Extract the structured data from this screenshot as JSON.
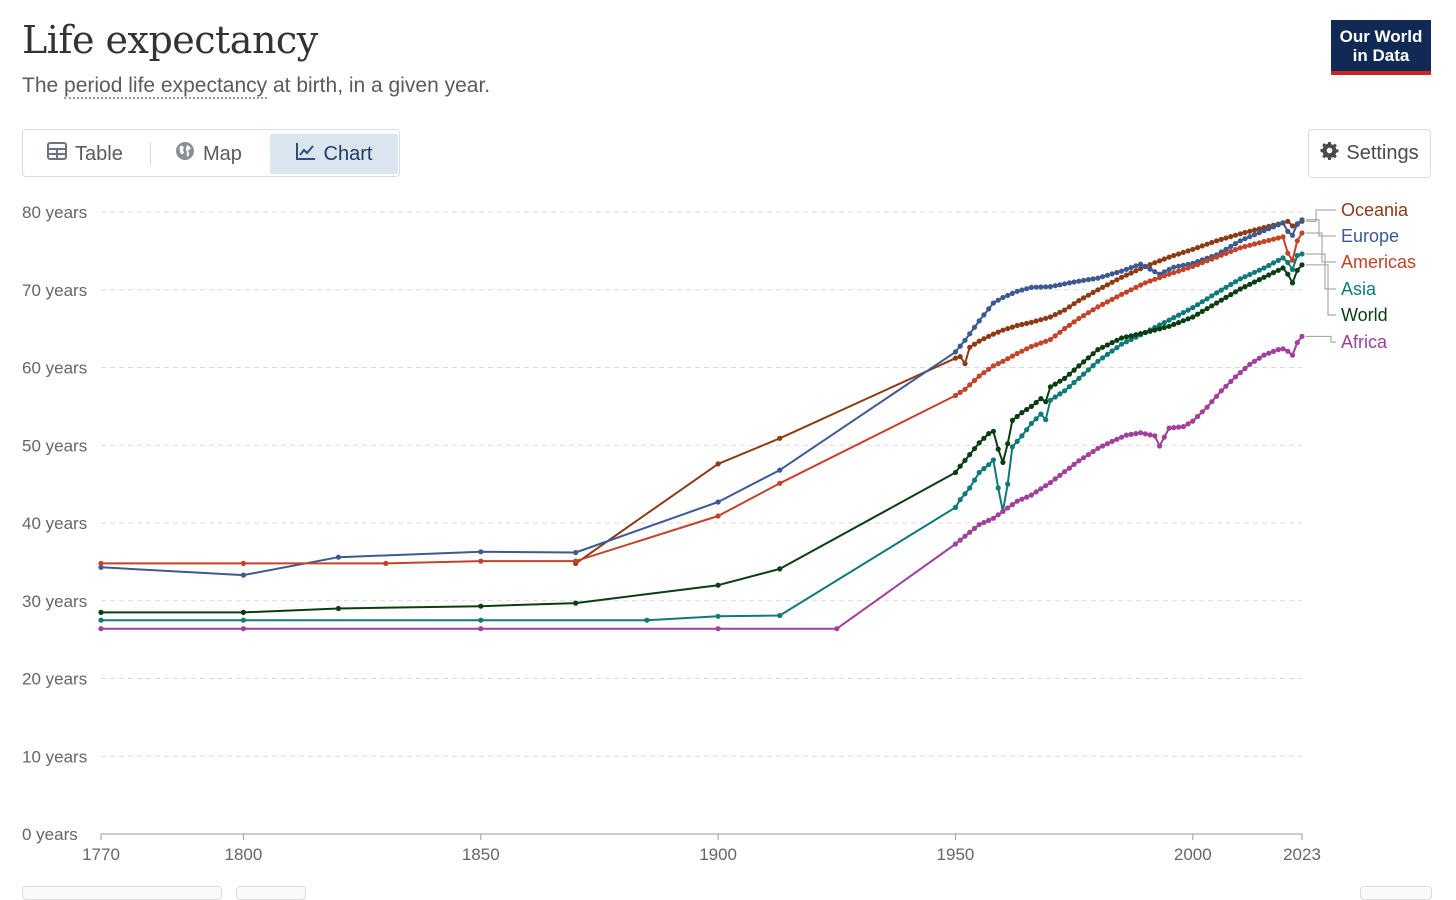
{
  "header": {
    "title": "Life expectancy",
    "subtitle_link": "period life expectancy",
    "subtitle_before": "The ",
    "subtitle_after": " at birth, in a given year."
  },
  "logo": {
    "line1": "Our World",
    "line2": "in Data"
  },
  "tabs": [
    {
      "label": "Table",
      "icon": "table-icon",
      "active": false
    },
    {
      "label": "Map",
      "icon": "globe-icon",
      "active": false
    },
    {
      "label": "Chart",
      "icon": "line-chart-icon",
      "active": true
    }
  ],
  "settings": {
    "label": "Settings",
    "icon": "gear-icon"
  },
  "chart_data": {
    "type": "line",
    "title": "Life expectancy",
    "subtitle": "The period life expectancy at birth, in a given year.",
    "xlabel": "",
    "ylabel": "",
    "xlim": [
      1770,
      2023
    ],
    "ylim": [
      0,
      80
    ],
    "x_ticks": [
      1770,
      1800,
      1850,
      1900,
      1950,
      2000,
      2023
    ],
    "y_ticks": [
      {
        "value": 0,
        "label": "0 years"
      },
      {
        "value": 10,
        "label": "10 years"
      },
      {
        "value": 20,
        "label": "20 years"
      },
      {
        "value": 30,
        "label": "30 years"
      },
      {
        "value": 40,
        "label": "40 years"
      },
      {
        "value": 50,
        "label": "50 years"
      },
      {
        "value": 60,
        "label": "60 years"
      },
      {
        "value": 70,
        "label": "70 years"
      },
      {
        "value": 80,
        "label": "80 years"
      }
    ],
    "grid": "horizontal dashed",
    "legend_placement": "right (line-end labels)",
    "series": [
      {
        "name": "Oceania",
        "color": "#8c3b14",
        "points": [
          [
            1870,
            34.8
          ],
          [
            1900,
            47.6
          ],
          [
            1913,
            50.9
          ],
          [
            1950,
            61.2
          ],
          [
            1951,
            61.4
          ],
          [
            1952,
            60.5
          ],
          [
            1953,
            62.6
          ],
          [
            1955,
            63.4
          ],
          [
            1958,
            64.3
          ],
          [
            1960,
            64.8
          ],
          [
            1963,
            65.4
          ],
          [
            1966,
            65.8
          ],
          [
            1970,
            66.5
          ],
          [
            1973,
            67.4
          ],
          [
            1976,
            68.6
          ],
          [
            1980,
            70.0
          ],
          [
            1985,
            71.6
          ],
          [
            1990,
            73.0
          ],
          [
            1995,
            74.2
          ],
          [
            2000,
            75.2
          ],
          [
            2005,
            76.3
          ],
          [
            2010,
            77.2
          ],
          [
            2015,
            78.0
          ],
          [
            2019,
            78.6
          ],
          [
            2020,
            78.8
          ],
          [
            2021,
            78.2
          ],
          [
            2022,
            78.4
          ],
          [
            2023,
            78.8
          ]
        ]
      },
      {
        "name": "Europe",
        "color": "#3c5a91",
        "points": [
          [
            1770,
            34.3
          ],
          [
            1800,
            33.3
          ],
          [
            1820,
            35.6
          ],
          [
            1850,
            36.3
          ],
          [
            1870,
            36.2
          ],
          [
            1900,
            42.7
          ],
          [
            1913,
            46.8
          ],
          [
            1950,
            62.0
          ],
          [
            1952,
            63.5
          ],
          [
            1955,
            66.0
          ],
          [
            1958,
            68.3
          ],
          [
            1960,
            69.0
          ],
          [
            1963,
            69.8
          ],
          [
            1966,
            70.3
          ],
          [
            1970,
            70.4
          ],
          [
            1975,
            71.0
          ],
          [
            1980,
            71.5
          ],
          [
            1985,
            72.4
          ],
          [
            1989,
            73.3
          ],
          [
            1993,
            72.0
          ],
          [
            1996,
            72.9
          ],
          [
            2000,
            73.4
          ],
          [
            2005,
            74.5
          ],
          [
            2010,
            76.3
          ],
          [
            2015,
            77.6
          ],
          [
            2019,
            78.6
          ],
          [
            2020,
            77.5
          ],
          [
            2021,
            77.0
          ],
          [
            2022,
            78.5
          ],
          [
            2023,
            79.0
          ]
        ]
      },
      {
        "name": "Americas",
        "color": "#c1442b",
        "points": [
          [
            1770,
            34.8
          ],
          [
            1800,
            34.8
          ],
          [
            1830,
            34.8
          ],
          [
            1850,
            35.1
          ],
          [
            1870,
            35.1
          ],
          [
            1900,
            40.9
          ],
          [
            1913,
            45.1
          ],
          [
            1950,
            56.4
          ],
          [
            1952,
            57.2
          ],
          [
            1955,
            58.9
          ],
          [
            1958,
            60.2
          ],
          [
            1960,
            60.8
          ],
          [
            1963,
            61.8
          ],
          [
            1966,
            62.7
          ],
          [
            1970,
            63.6
          ],
          [
            1973,
            65.0
          ],
          [
            1976,
            66.3
          ],
          [
            1980,
            67.8
          ],
          [
            1985,
            69.4
          ],
          [
            1990,
            70.9
          ],
          [
            1995,
            72.0
          ],
          [
            2000,
            73.0
          ],
          [
            2005,
            74.2
          ],
          [
            2010,
            75.4
          ],
          [
            2015,
            76.2
          ],
          [
            2019,
            76.8
          ],
          [
            2020,
            74.7
          ],
          [
            2021,
            73.8
          ],
          [
            2022,
            76.3
          ],
          [
            2023,
            77.3
          ]
        ]
      },
      {
        "name": "Asia",
        "color": "#0f7a78",
        "points": [
          [
            1770,
            27.5
          ],
          [
            1800,
            27.5
          ],
          [
            1850,
            27.5
          ],
          [
            1885,
            27.5
          ],
          [
            1900,
            28.0
          ],
          [
            1913,
            28.1
          ],
          [
            1950,
            42.0
          ],
          [
            1951,
            43.0
          ],
          [
            1953,
            44.5
          ],
          [
            1955,
            46.5
          ],
          [
            1957,
            47.5
          ],
          [
            1958,
            48.1
          ],
          [
            1959,
            44.5
          ],
          [
            1960,
            41.5
          ],
          [
            1961,
            45.0
          ],
          [
            1962,
            49.8
          ],
          [
            1964,
            51.2
          ],
          [
            1966,
            52.8
          ],
          [
            1968,
            54.0
          ],
          [
            1969,
            53.3
          ],
          [
            1970,
            55.8
          ],
          [
            1973,
            57.0
          ],
          [
            1976,
            58.6
          ],
          [
            1980,
            60.8
          ],
          [
            1985,
            63.0
          ],
          [
            1990,
            64.5
          ],
          [
            1995,
            66.1
          ],
          [
            2000,
            67.7
          ],
          [
            2005,
            69.6
          ],
          [
            2010,
            71.4
          ],
          [
            2015,
            72.8
          ],
          [
            2019,
            74.1
          ],
          [
            2020,
            73.5
          ],
          [
            2021,
            72.6
          ],
          [
            2022,
            74.4
          ],
          [
            2023,
            74.6
          ]
        ]
      },
      {
        "name": "World",
        "color": "#0b3d12",
        "points": [
          [
            1770,
            28.5
          ],
          [
            1800,
            28.5
          ],
          [
            1820,
            29.0
          ],
          [
            1850,
            29.3
          ],
          [
            1870,
            29.7
          ],
          [
            1900,
            32.0
          ],
          [
            1913,
            34.1
          ],
          [
            1950,
            46.5
          ],
          [
            1951,
            47.3
          ],
          [
            1953,
            48.8
          ],
          [
            1955,
            50.3
          ],
          [
            1957,
            51.5
          ],
          [
            1958,
            51.8
          ],
          [
            1959,
            49.5
          ],
          [
            1960,
            47.8
          ],
          [
            1961,
            50.2
          ],
          [
            1962,
            53.2
          ],
          [
            1964,
            54.2
          ],
          [
            1966,
            55.0
          ],
          [
            1968,
            56.0
          ],
          [
            1969,
            55.6
          ],
          [
            1970,
            57.5
          ],
          [
            1973,
            58.6
          ],
          [
            1976,
            60.2
          ],
          [
            1980,
            62.3
          ],
          [
            1985,
            63.8
          ],
          [
            1990,
            64.5
          ],
          [
            1995,
            65.3
          ],
          [
            2000,
            66.5
          ],
          [
            2005,
            68.3
          ],
          [
            2010,
            70.1
          ],
          [
            2015,
            71.6
          ],
          [
            2019,
            72.8
          ],
          [
            2020,
            72.0
          ],
          [
            2021,
            70.9
          ],
          [
            2022,
            72.5
          ],
          [
            2023,
            73.2
          ]
        ]
      },
      {
        "name": "Africa",
        "color": "#a0409b",
        "points": [
          [
            1770,
            26.4
          ],
          [
            1800,
            26.4
          ],
          [
            1850,
            26.4
          ],
          [
            1900,
            26.4
          ],
          [
            1925,
            26.4
          ],
          [
            1950,
            37.3
          ],
          [
            1952,
            38.3
          ],
          [
            1955,
            39.8
          ],
          [
            1958,
            40.6
          ],
          [
            1960,
            41.5
          ],
          [
            1963,
            42.8
          ],
          [
            1966,
            43.6
          ],
          [
            1970,
            45.2
          ],
          [
            1973,
            46.6
          ],
          [
            1976,
            48.0
          ],
          [
            1980,
            49.6
          ],
          [
            1983,
            50.5
          ],
          [
            1986,
            51.3
          ],
          [
            1989,
            51.6
          ],
          [
            1992,
            51.2
          ],
          [
            1993,
            49.9
          ],
          [
            1995,
            52.2
          ],
          [
            1998,
            52.4
          ],
          [
            2000,
            53.1
          ],
          [
            2003,
            54.9
          ],
          [
            2006,
            57.0
          ],
          [
            2009,
            58.8
          ],
          [
            2012,
            60.4
          ],
          [
            2015,
            61.6
          ],
          [
            2018,
            62.3
          ],
          [
            2019,
            62.4
          ],
          [
            2020,
            62.1
          ],
          [
            2021,
            61.6
          ],
          [
            2022,
            63.2
          ],
          [
            2023,
            64.0
          ]
        ]
      }
    ]
  }
}
